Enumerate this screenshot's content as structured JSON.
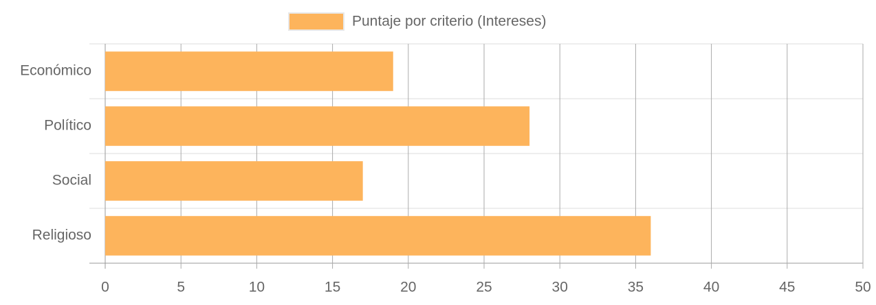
{
  "chart_data": {
    "type": "bar",
    "orientation": "horizontal",
    "categories": [
      "Económico",
      "Político",
      "Social",
      "Religioso"
    ],
    "series": [
      {
        "name": "Puntaje por criterio (Intereses)",
        "color": "#fdb45c",
        "values": [
          19,
          28,
          17,
          36
        ]
      }
    ],
    "xlim": [
      0,
      50
    ],
    "xticks": [
      0,
      5,
      10,
      15,
      20,
      25,
      30,
      35,
      40,
      45,
      50
    ],
    "grid": true,
    "legend": "top"
  }
}
